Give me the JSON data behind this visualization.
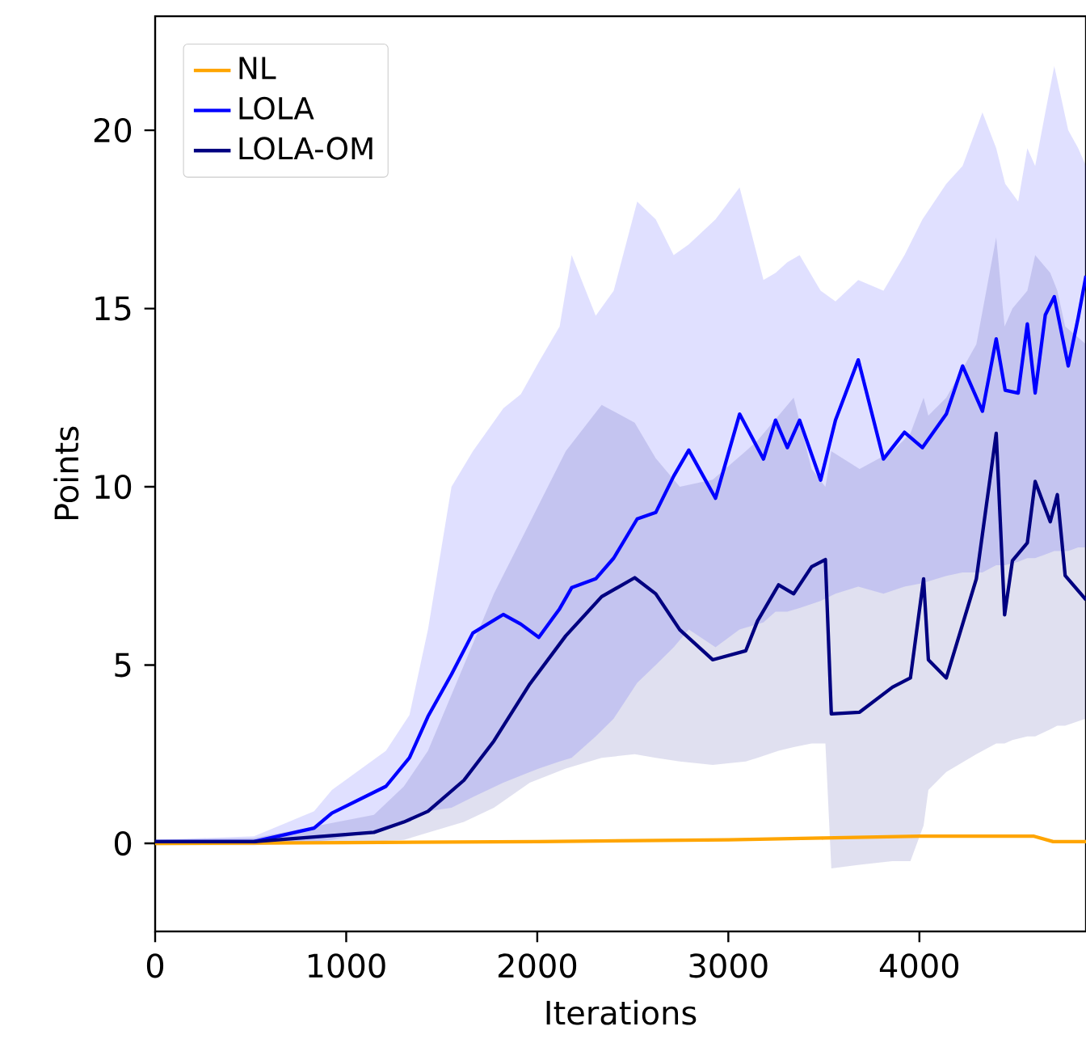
{
  "chart_data": {
    "type": "line",
    "xlabel": "Iterations",
    "ylabel": "Points",
    "xlim": [
      0,
      4872
    ],
    "ylim": [
      -2.47,
      23.2
    ],
    "xticks": [
      0,
      1000,
      2000,
      3000,
      4000
    ],
    "yticks": [
      0,
      5,
      10,
      15,
      20
    ],
    "legend": "top left",
    "grid": false,
    "marker": "none",
    "line_style": "solid",
    "series": [
      {
        "name": "NL",
        "color": "#ffa500",
        "x": [
          0,
          1000,
          2000,
          3000,
          3500,
          4000,
          4600,
          4700,
          4872
        ],
        "values": [
          0.0,
          0.02,
          0.05,
          0.1,
          0.15,
          0.2,
          0.2,
          0.05,
          0.05
        ]
      },
      {
        "name": "LOLA",
        "color": "#0000ff",
        "x": [
          0,
          517,
          832,
          925,
          1208,
          1331,
          1428,
          1551,
          1663,
          1822,
          1914,
          2008,
          2117,
          2180,
          2306,
          2400,
          2523,
          2620,
          2714,
          2793,
          2933,
          3059,
          3184,
          3247,
          3309,
          3373,
          3483,
          3561,
          3680,
          3812,
          3922,
          4016,
          4141,
          4226,
          4330,
          4402,
          4449,
          4517,
          4565,
          4606,
          4659,
          4706,
          4779,
          4831,
          4872
        ],
        "values": [
          0.05,
          0.05,
          0.43,
          0.85,
          1.6,
          2.4,
          3.56,
          4.74,
          5.9,
          6.42,
          6.15,
          5.78,
          6.58,
          7.17,
          7.42,
          8.0,
          9.1,
          9.28,
          10.3,
          11.03,
          9.68,
          12.04,
          10.78,
          11.87,
          11.1,
          11.87,
          10.19,
          11.87,
          13.56,
          10.78,
          11.53,
          11.1,
          12.04,
          13.39,
          12.12,
          14.15,
          12.71,
          12.63,
          14.57,
          12.63,
          14.82,
          15.33,
          13.39,
          14.74,
          15.92
        ],
        "upper": [
          0.1,
          0.2,
          0.9,
          1.5,
          2.6,
          3.6,
          6.0,
          10.0,
          11.0,
          12.2,
          12.6,
          13.5,
          14.5,
          16.5,
          14.8,
          15.5,
          18.0,
          17.5,
          16.5,
          16.8,
          17.5,
          18.4,
          15.8,
          16.0,
          16.3,
          16.5,
          15.5,
          15.2,
          15.8,
          15.5,
          16.5,
          17.5,
          18.5,
          19.0,
          20.5,
          19.5,
          18.5,
          18.0,
          19.5,
          19.0,
          20.5,
          21.8,
          20.0,
          19.5,
          19.0
        ],
        "lower": [
          -0.05,
          -0.05,
          0.05,
          0.1,
          0.4,
          0.6,
          0.9,
          1.0,
          1.3,
          1.7,
          1.9,
          2.1,
          2.3,
          2.4,
          3.0,
          3.5,
          4.5,
          5.0,
          5.5,
          6.0,
          5.5,
          6.0,
          6.2,
          6.5,
          6.5,
          6.6,
          6.8,
          7.0,
          7.2,
          7.0,
          7.2,
          7.3,
          7.5,
          7.6,
          7.6,
          7.8,
          7.8,
          7.9,
          8.0,
          8.0,
          8.1,
          8.2,
          8.2,
          8.3,
          8.3
        ]
      },
      {
        "name": "LOLA-OM",
        "color": "#000080",
        "x": [
          0,
          517,
          1145,
          1302,
          1428,
          1616,
          1773,
          1961,
          2149,
          2337,
          2510,
          2620,
          2746,
          2918,
          3091,
          3153,
          3263,
          3342,
          3436,
          3508,
          3539,
          3687,
          3859,
          3953,
          4022,
          4047,
          4141,
          4298,
          4402,
          4446,
          4487,
          4565,
          4606,
          4685,
          4722,
          4763,
          4872
        ],
        "values": [
          0.05,
          0.05,
          0.31,
          0.6,
          0.9,
          1.77,
          2.87,
          4.47,
          5.82,
          6.92,
          7.45,
          7.0,
          5.99,
          5.15,
          5.4,
          6.24,
          7.25,
          7.0,
          7.76,
          7.96,
          3.63,
          3.68,
          4.38,
          4.64,
          7.42,
          5.15,
          4.64,
          7.42,
          11.5,
          6.41,
          7.93,
          8.43,
          10.15,
          9.02,
          9.78,
          7.51,
          6.83
        ],
        "upper": [
          0.1,
          0.15,
          0.8,
          1.6,
          2.6,
          5.0,
          7.0,
          9.0,
          11.0,
          12.3,
          11.8,
          10.8,
          10.0,
          10.2,
          11.0,
          11.3,
          12.0,
          12.5,
          10.5,
          10.0,
          11.0,
          10.5,
          11.0,
          11.5,
          12.5,
          12.0,
          12.5,
          14.0,
          17.0,
          14.5,
          15.0,
          15.5,
          16.5,
          16.0,
          15.5,
          14.5,
          14.0
        ],
        "lower": [
          -0.05,
          -0.05,
          0.05,
          0.1,
          0.3,
          0.6,
          1.0,
          1.7,
          2.1,
          2.4,
          2.5,
          2.4,
          2.3,
          2.2,
          2.3,
          2.4,
          2.6,
          2.7,
          2.8,
          2.8,
          -0.7,
          -0.6,
          -0.5,
          -0.5,
          0.5,
          1.5,
          2.0,
          2.5,
          2.8,
          2.8,
          2.9,
          3.0,
          3.0,
          3.2,
          3.3,
          3.3,
          3.5
        ]
      }
    ]
  }
}
